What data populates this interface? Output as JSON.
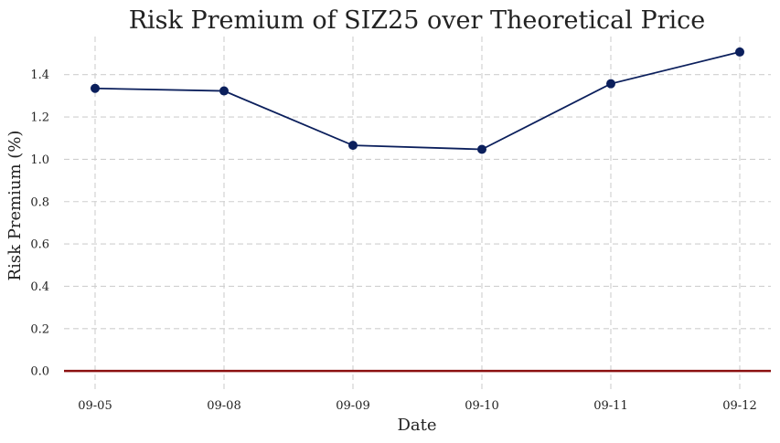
{
  "chart_data": {
    "type": "line",
    "title": "Risk Premium of SIZ25 over Theoretical Price",
    "xlabel": "Date",
    "ylabel": "Risk Premium (%)",
    "categories": [
      "09-05",
      "09-08",
      "09-09",
      "09-10",
      "09-11",
      "09-12"
    ],
    "series": [
      {
        "values": [
          1.335,
          1.323,
          1.066,
          1.047,
          1.357,
          1.507
        ],
        "color": "#0b1f5c"
      }
    ],
    "ylim": [
      -0.09,
      1.58
    ],
    "yticks": [
      0.0,
      0.2,
      0.4,
      0.6,
      0.8,
      1.0,
      1.2,
      1.4
    ],
    "ytick_labels": [
      "0.0",
      "0.2",
      "0.4",
      "0.6",
      "0.8",
      "1.0",
      "1.2",
      "1.4"
    ],
    "grid": true,
    "reference_line": {
      "y": 0,
      "color": "#8b1010"
    }
  }
}
